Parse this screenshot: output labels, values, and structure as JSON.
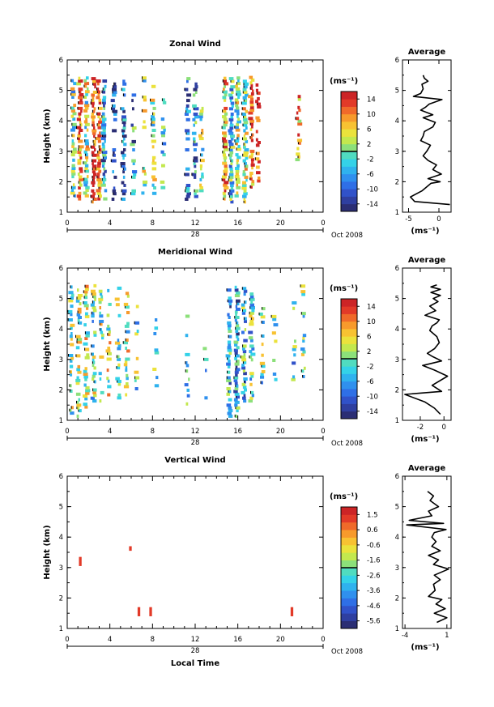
{
  "figure": {
    "colorscale": [
      "#2b2e74",
      "#2f3fa0",
      "#3152c9",
      "#2f6fe6",
      "#2f90ee",
      "#2fb2ee",
      "#34d2e8",
      "#50dcc0",
      "#8ce07a",
      "#c3e84e",
      "#ebe23c",
      "#f8c232",
      "#f79a2c",
      "#f06a2a",
      "#e23a28",
      "#cc2426"
    ]
  },
  "chart_data": [
    {
      "type": "heatmap",
      "title": "Zonal Wind",
      "xlabel": "",
      "ylabel": "Height (km)",
      "x_ticks": [
        "0",
        "4",
        "8",
        "12",
        "16",
        "20",
        "0"
      ],
      "x_date_label": "28",
      "date_label": "Oct 2008",
      "xlim": [
        0,
        24
      ],
      "y_ticks": [
        "1",
        "2",
        "3",
        "4",
        "5",
        "6"
      ],
      "ylim": [
        1,
        6
      ],
      "colorbar": {
        "unit": "(ms⁻¹)",
        "ticks": [
          "14",
          "10",
          "6",
          "2",
          "-2",
          "-6",
          "-10",
          "-14"
        ],
        "range": [
          -16,
          16
        ]
      },
      "columns": [
        {
          "t": 0.6,
          "h": [
            1.5,
            5.4
          ],
          "density": 0.8,
          "bias": 0.5
        },
        {
          "t": 1.2,
          "h": [
            1.4,
            5.4
          ],
          "density": 0.9,
          "bias": 0.85
        },
        {
          "t": 1.8,
          "h": [
            1.5,
            5.4
          ],
          "density": 0.9,
          "bias": 0.55
        },
        {
          "t": 2.5,
          "h": [
            1.3,
            5.4
          ],
          "density": 0.95,
          "bias": 0.95
        },
        {
          "t": 3.0,
          "h": [
            1.4,
            5.4
          ],
          "density": 0.85,
          "bias": 0.9
        },
        {
          "t": 3.5,
          "h": [
            1.4,
            5.3
          ],
          "density": 0.8,
          "bias": 0.3
        },
        {
          "t": 4.4,
          "h": [
            1.3,
            5.4
          ],
          "density": 0.6,
          "bias": 0.1
        },
        {
          "t": 5.3,
          "h": [
            1.3,
            5.3
          ],
          "density": 0.6,
          "bias": 0.2
        },
        {
          "t": 6.2,
          "h": [
            1.3,
            5.0
          ],
          "density": 0.4,
          "bias": 0.3
        },
        {
          "t": 7.2,
          "h": [
            1.5,
            5.4
          ],
          "density": 0.45,
          "bias": 0.55
        },
        {
          "t": 8.1,
          "h": [
            1.4,
            5.3
          ],
          "density": 0.5,
          "bias": 0.5
        },
        {
          "t": 9.0,
          "h": [
            1.5,
            4.8
          ],
          "density": 0.4,
          "bias": 0.45
        },
        {
          "t": 11.3,
          "h": [
            1.3,
            5.4
          ],
          "density": 0.55,
          "bias": 0.25
        },
        {
          "t": 12.0,
          "h": [
            1.3,
            5.3
          ],
          "density": 0.6,
          "bias": 0.3
        },
        {
          "t": 12.6,
          "h": [
            1.4,
            4.5
          ],
          "density": 0.55,
          "bias": 0.5
        },
        {
          "t": 14.8,
          "h": [
            1.4,
            5.4
          ],
          "density": 0.85,
          "bias": 0.7
        },
        {
          "t": 15.4,
          "h": [
            1.3,
            5.4
          ],
          "density": 0.9,
          "bias": 0.4
        },
        {
          "t": 16.0,
          "h": [
            1.5,
            5.4
          ],
          "density": 0.9,
          "bias": 0.55
        },
        {
          "t": 16.7,
          "h": [
            1.3,
            5.4
          ],
          "density": 0.9,
          "bias": 0.6
        },
        {
          "t": 17.3,
          "h": [
            1.7,
            5.4
          ],
          "density": 0.85,
          "bias": 0.85
        },
        {
          "t": 17.9,
          "h": [
            1.9,
            5.2
          ],
          "density": 0.7,
          "bias": 0.95
        },
        {
          "t": 21.7,
          "h": [
            2.6,
            5.1
          ],
          "density": 0.5,
          "bias": 0.8
        }
      ]
    },
    {
      "type": "heatmap",
      "title": "Meridional Wind",
      "xlabel": "",
      "ylabel": "Height (km)",
      "x_ticks": [
        "0",
        "4",
        "8",
        "12",
        "16",
        "20",
        "0"
      ],
      "x_date_label": "28",
      "date_label": "Oct 2008",
      "xlim": [
        0,
        24
      ],
      "y_ticks": [
        "1",
        "2",
        "3",
        "4",
        "5",
        "6"
      ],
      "ylim": [
        1,
        6
      ],
      "colorbar": {
        "unit": "(ms⁻¹)",
        "ticks": [
          "14",
          "10",
          "6",
          "2",
          "-2",
          "-6",
          "-10",
          "-14"
        ],
        "range": [
          -16,
          16
        ]
      },
      "columns": [
        {
          "t": 0.4,
          "h": [
            1.2,
            5.4
          ],
          "density": 0.55,
          "bias": 0.5
        },
        {
          "t": 1.1,
          "h": [
            1.1,
            5.4
          ],
          "density": 0.6,
          "bias": 0.55
        },
        {
          "t": 1.8,
          "h": [
            1.4,
            5.4
          ],
          "density": 0.65,
          "bias": 0.6
        },
        {
          "t": 2.5,
          "h": [
            1.6,
            5.4
          ],
          "density": 0.7,
          "bias": 0.5
        },
        {
          "t": 3.2,
          "h": [
            1.6,
            5.4
          ],
          "density": 0.65,
          "bias": 0.55
        },
        {
          "t": 3.9,
          "h": [
            1.8,
            5.3
          ],
          "density": 0.55,
          "bias": 0.6
        },
        {
          "t": 4.8,
          "h": [
            1.7,
            5.3
          ],
          "density": 0.45,
          "bias": 0.5
        },
        {
          "t": 5.6,
          "h": [
            1.8,
            5.4
          ],
          "density": 0.45,
          "bias": 0.55
        },
        {
          "t": 6.5,
          "h": [
            2.0,
            5.0
          ],
          "density": 0.3,
          "bias": 0.45
        },
        {
          "t": 8.3,
          "h": [
            2.1,
            4.4
          ],
          "density": 0.25,
          "bias": 0.4
        },
        {
          "t": 11.3,
          "h": [
            1.5,
            4.6
          ],
          "density": 0.25,
          "bias": 0.4
        },
        {
          "t": 13.0,
          "h": [
            1.7,
            3.6
          ],
          "density": 0.25,
          "bias": 0.45
        },
        {
          "t": 15.2,
          "h": [
            1.1,
            5.4
          ],
          "density": 0.8,
          "bias": 0.32
        },
        {
          "t": 15.9,
          "h": [
            1.1,
            5.4
          ],
          "density": 0.85,
          "bias": 0.3
        },
        {
          "t": 16.6,
          "h": [
            1.6,
            5.4
          ],
          "density": 0.8,
          "bias": 0.38
        },
        {
          "t": 17.3,
          "h": [
            1.6,
            5.4
          ],
          "density": 0.65,
          "bias": 0.45
        },
        {
          "t": 18.3,
          "h": [
            2.2,
            4.8
          ],
          "density": 0.45,
          "bias": 0.5
        },
        {
          "t": 19.5,
          "h": [
            2.3,
            4.6
          ],
          "density": 0.3,
          "bias": 0.45
        },
        {
          "t": 21.3,
          "h": [
            2.3,
            5.0
          ],
          "density": 0.35,
          "bias": 0.45
        },
        {
          "t": 22.2,
          "h": [
            2.4,
            5.4
          ],
          "density": 0.35,
          "bias": 0.5
        }
      ]
    },
    {
      "type": "heatmap",
      "title": "Vertical Wind",
      "xlabel": "Local Time",
      "ylabel": "Height (km)",
      "x_ticks": [
        "0",
        "4",
        "8",
        "12",
        "16",
        "20",
        "0"
      ],
      "x_date_label": "28",
      "date_label": "Oct 2008",
      "xlim": [
        0,
        24
      ],
      "y_ticks": [
        "1",
        "2",
        "3",
        "4",
        "5",
        "6"
      ],
      "ylim": [
        1,
        6
      ],
      "colorbar": {
        "unit": "(ms⁻¹)",
        "ticks": [
          "1.5",
          "0.6",
          "-0.6",
          "-1.6",
          "-2.6",
          "-3.6",
          "-4.6",
          "-5.6"
        ],
        "range": [
          -6,
          2
        ]
      },
      "blocks": [
        {
          "t0": 1.1,
          "t1": 1.35,
          "h0": 3.05,
          "h1": 3.35,
          "value": 1.2
        },
        {
          "t0": 5.8,
          "t1": 6.05,
          "h0": 3.55,
          "h1": 3.7,
          "value": 1.4
        },
        {
          "t0": 6.6,
          "t1": 6.85,
          "h0": 1.4,
          "h1": 1.7,
          "value": 1.3
        },
        {
          "t0": 7.7,
          "t1": 7.95,
          "h0": 1.4,
          "h1": 1.7,
          "value": 1.3
        },
        {
          "t0": 20.95,
          "t1": 21.2,
          "h0": 1.4,
          "h1": 1.7,
          "value": 1.3
        }
      ]
    },
    {
      "type": "line",
      "title": "Average",
      "xlabel": "(ms⁻¹)",
      "ylabel": "",
      "x_ticks": [
        "-5",
        "0"
      ],
      "x_tick_values": [
        -5,
        0
      ],
      "xlim": [
        -6,
        2
      ],
      "y_ticks": [
        "1",
        "2",
        "3",
        "4",
        "5",
        "6"
      ],
      "ylim": [
        1,
        6
      ],
      "series": [
        {
          "x": [
            1.8,
            -4.0,
            -4.7,
            -2.8,
            -1.3,
            0.2,
            -1.8,
            0.4,
            -1.0,
            -0.4,
            -1.8,
            -2.6,
            -2.0,
            -1.4,
            -3.0,
            -2.6,
            -2.4,
            -1.0,
            -0.6,
            -2.6,
            -1.0,
            -3.0,
            -2.2,
            -1.6,
            0.5,
            -4.2,
            -3.0,
            -2.6,
            -2.8,
            -1.8,
            -2.4,
            -2.6
          ],
          "y": [
            1.25,
            1.35,
            1.5,
            1.7,
            1.95,
            2.0,
            2.1,
            2.25,
            2.4,
            2.55,
            2.7,
            2.85,
            3.0,
            3.2,
            3.35,
            3.5,
            3.65,
            3.8,
            3.95,
            4.1,
            4.2,
            4.35,
            4.45,
            4.55,
            4.7,
            4.8,
            4.9,
            5.05,
            5.2,
            5.3,
            5.4,
            5.5
          ]
        }
      ]
    },
    {
      "type": "line",
      "title": "Average",
      "xlabel": "(ms⁻¹)",
      "ylabel": "",
      "x_ticks": [
        "-2",
        "0"
      ],
      "x_tick_values": [
        -2,
        0
      ],
      "xlim": [
        -3.5,
        0.6
      ],
      "y_ticks": [
        "1",
        "2",
        "3",
        "4",
        "5",
        "6"
      ],
      "ylim": [
        1,
        6
      ],
      "series": [
        {
          "x": [
            -0.3,
            -0.8,
            -1.6,
            -3.3,
            -0.2,
            -1.0,
            0.3,
            -0.8,
            -1.8,
            -0.2,
            -1.0,
            -1.4,
            -0.8,
            -0.4,
            -0.6,
            -1.2,
            -1.0,
            -0.6,
            -0.4,
            -1.6,
            -0.7,
            -1.2,
            -0.5,
            -0.9,
            -0.3,
            -1.1,
            -0.3,
            -1.1,
            -0.6
          ],
          "y": [
            1.2,
            1.4,
            1.6,
            1.85,
            1.95,
            2.15,
            2.45,
            2.65,
            2.8,
            2.95,
            3.1,
            3.2,
            3.35,
            3.55,
            3.75,
            3.95,
            4.1,
            4.2,
            4.3,
            4.45,
            4.6,
            4.75,
            4.9,
            5.0,
            5.1,
            5.2,
            5.3,
            5.38,
            5.45
          ]
        }
      ]
    },
    {
      "type": "line",
      "title": "Average",
      "xlabel": "(ms⁻¹)",
      "ylabel": "",
      "x_ticks": [
        "-4",
        "1"
      ],
      "x_tick_values": [
        -4,
        1
      ],
      "xlim": [
        -4.3,
        1.5
      ],
      "y_ticks": [
        "1",
        "2",
        "3",
        "4",
        "5",
        "6"
      ],
      "ylim": [
        1,
        6
      ],
      "series": [
        {
          "x": [
            -0.2,
            1.0,
            -0.5,
            0.8,
            -0.3,
            0.4,
            -1.2,
            -0.4,
            -0.6,
            0.2,
            -0.5,
            1.2,
            -0.6,
            0.0,
            -1.2,
            0.2,
            -0.8,
            -0.3,
            -0.8,
            -0.5,
            0.9,
            -3.8,
            0.6,
            -3.5,
            -0.8,
            -1.2,
            0.0,
            -1.0,
            -0.6,
            -1.3
          ],
          "y": [
            1.2,
            1.35,
            1.5,
            1.65,
            1.8,
            1.95,
            2.05,
            2.25,
            2.45,
            2.6,
            2.75,
            2.95,
            3.1,
            3.25,
            3.4,
            3.55,
            3.7,
            3.85,
            4.0,
            4.15,
            4.25,
            4.4,
            4.45,
            4.55,
            4.7,
            4.85,
            5.0,
            5.2,
            5.35,
            5.5
          ]
        }
      ]
    }
  ]
}
